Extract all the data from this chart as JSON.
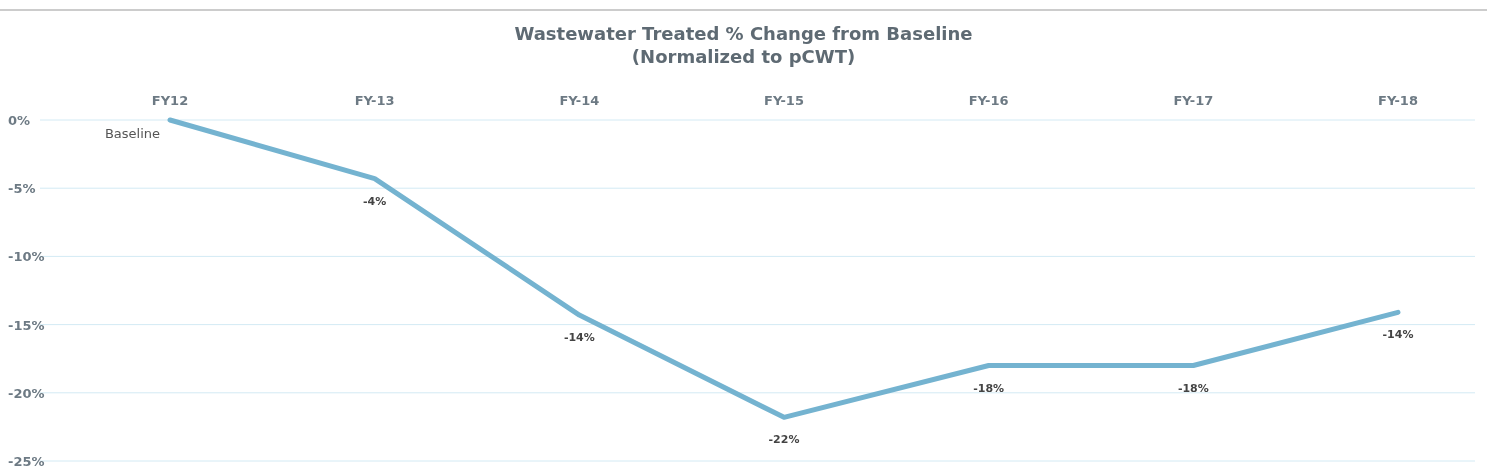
{
  "chart_data": {
    "type": "line",
    "title": "Wastewater Treated % Change from Baseline\n(Normalized to pCWT)",
    "categories": [
      "FY12",
      "FY-13",
      "FY-14",
      "FY-15",
      "FY-16",
      "FY-17",
      "FY-18"
    ],
    "series": [
      {
        "color": "#74b3d0",
        "values": [
          0,
          -4.3,
          -14.3,
          -21.8,
          -18,
          -18,
          -14.1
        ],
        "value_labels": [
          "Baseline",
          "-4%",
          "-14%",
          "-22%",
          "-18%",
          "-18%",
          "-14%"
        ]
      }
    ],
    "ylim": [
      -25,
      0
    ],
    "yticks": [
      {
        "value": 0,
        "label": "0%"
      },
      {
        "value": -5,
        "label": "-5%"
      },
      {
        "value": -10,
        "label": "-10%"
      },
      {
        "value": -15,
        "label": "-15%"
      },
      {
        "value": -20,
        "label": "-20%"
      },
      {
        "value": -25,
        "label": "-25%"
      }
    ],
    "grid": "y",
    "marker": "none",
    "line_style": "solid"
  }
}
